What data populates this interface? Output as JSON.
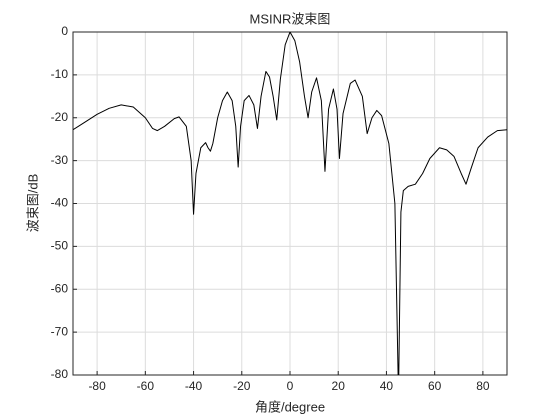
{
  "chart_data": {
    "type": "line",
    "title": "MSINR波束图",
    "x_label": "角度/degree",
    "y_label": "波束图/dB",
    "grid": true,
    "xlim": [
      -90,
      90
    ],
    "ylim": [
      -80,
      0
    ],
    "xticks": [
      -80,
      -60,
      -40,
      -20,
      0,
      20,
      40,
      60,
      80
    ],
    "yticks": [
      -80,
      -70,
      -60,
      -50,
      -40,
      -30,
      -20,
      -10,
      0
    ],
    "x": [
      -90,
      -85,
      -80,
      -75,
      -70,
      -65,
      -60,
      -57,
      -55,
      -52,
      -48,
      -46,
      -43,
      -41,
      -40,
      -39,
      -37,
      -35,
      -34,
      -33,
      -32,
      -30,
      -28,
      -26,
      -24,
      -22.5,
      -21.5,
      -20.5,
      -19,
      -17,
      -15,
      -13.5,
      -12,
      -10,
      -8.5,
      -7,
      -5.5,
      -4,
      -2,
      0,
      2,
      4,
      6,
      7.5,
      9,
      11,
      13,
      14.5,
      16,
      18,
      19.5,
      20.5,
      22,
      25,
      27,
      30,
      32,
      34,
      36,
      38,
      41,
      43.5,
      45,
      46,
      47,
      49,
      52,
      55,
      58,
      62,
      65,
      68,
      71,
      73,
      75,
      78,
      82,
      86,
      90
    ],
    "series": [
      {
        "name": "MSINR",
        "color": "#000000",
        "values": [
          -22.8,
          -21,
          -19.2,
          -17.8,
          -17,
          -17.5,
          -20,
          -22.5,
          -23,
          -22,
          -20.2,
          -19.8,
          -22,
          -30,
          -42.5,
          -33,
          -27,
          -25.8,
          -27,
          -27.8,
          -26,
          -20,
          -16,
          -14,
          -16,
          -22,
          -31.5,
          -22,
          -16,
          -14.8,
          -17,
          -22.5,
          -15,
          -9.2,
          -10.5,
          -15,
          -20.5,
          -11,
          -3,
          0,
          -2,
          -7,
          -15,
          -20,
          -14,
          -10.7,
          -16,
          -32.5,
          -18,
          -13.3,
          -18,
          -29.5,
          -19,
          -12,
          -11.2,
          -15,
          -23.7,
          -20,
          -18.3,
          -19.5,
          -26,
          -40,
          -85,
          -42,
          -37,
          -36,
          -35.5,
          -33,
          -29.5,
          -27,
          -27.5,
          -29,
          -33,
          -35.5,
          -32,
          -27,
          -24.5,
          -23,
          -22.8
        ]
      }
    ]
  }
}
